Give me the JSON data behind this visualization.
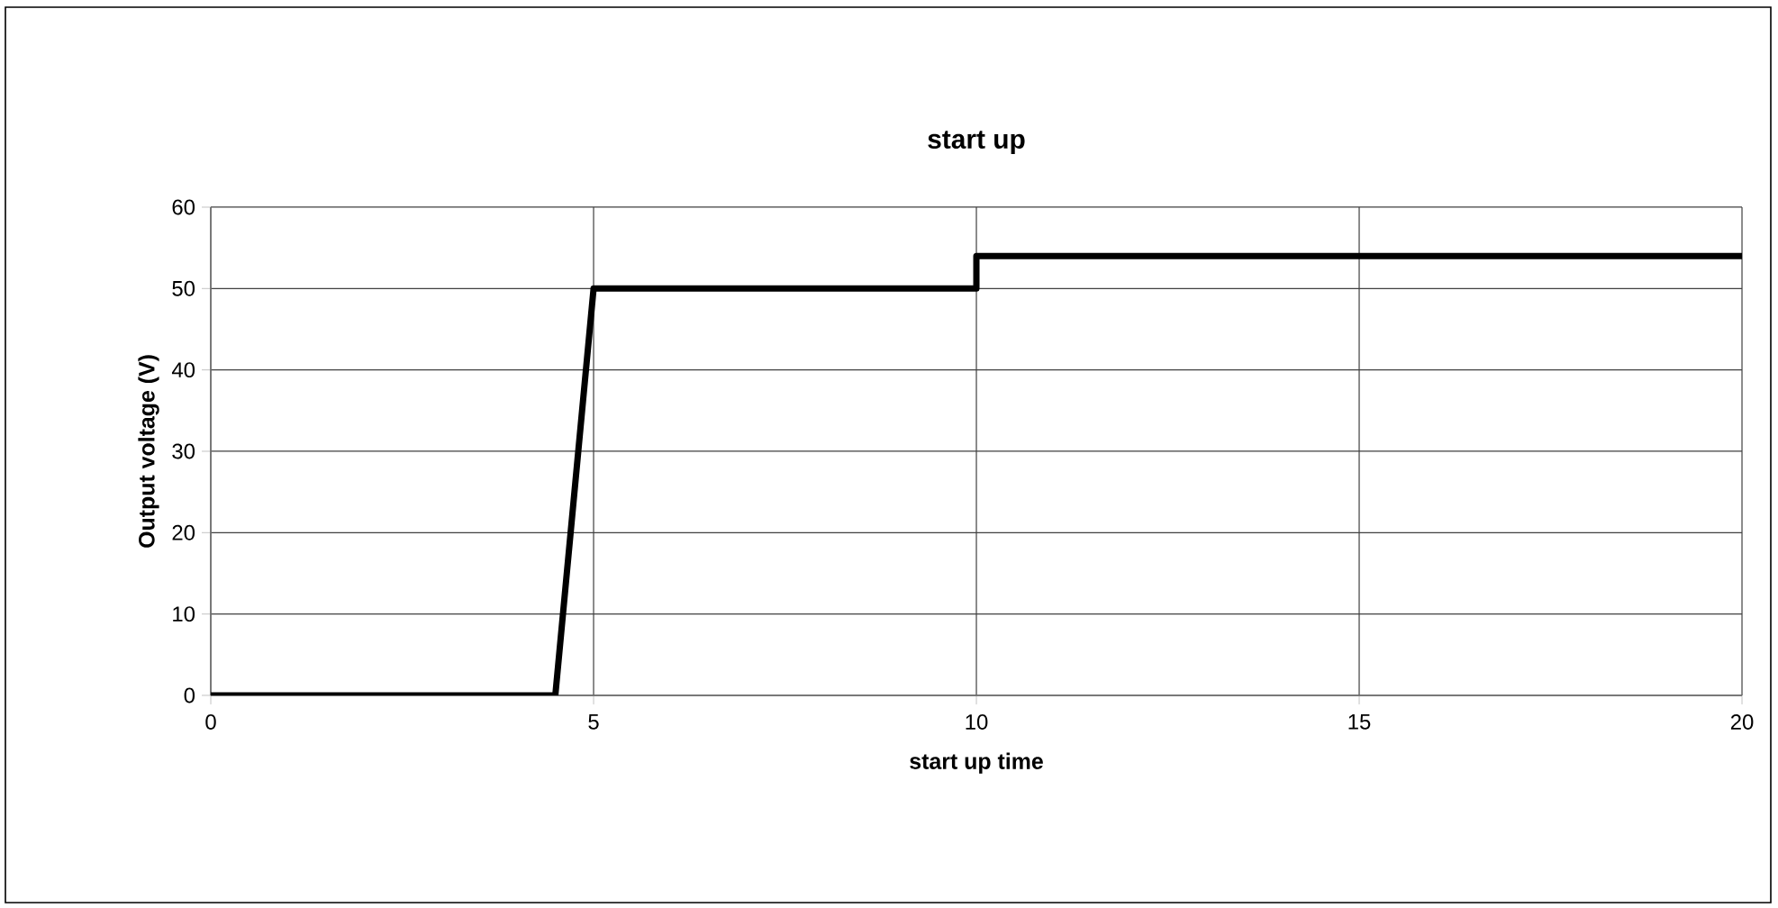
{
  "chart_data": {
    "type": "line",
    "title": "start up",
    "xlabel": "start up time",
    "ylabel": "Output voltage (V)",
    "x": [
      0,
      4.5,
      5,
      10,
      10,
      20
    ],
    "series": [
      {
        "color": "#000000",
        "values": [
          0,
          0,
          50,
          50,
          54,
          54
        ]
      }
    ],
    "xlim": [
      0,
      20
    ],
    "xticks": [
      0,
      5,
      10,
      15,
      20
    ],
    "ylim": [
      0,
      60
    ],
    "yticks": [
      0,
      10,
      20,
      30,
      40,
      50,
      60
    ],
    "grid": true,
    "marker": "none",
    "line_style": "solid"
  }
}
